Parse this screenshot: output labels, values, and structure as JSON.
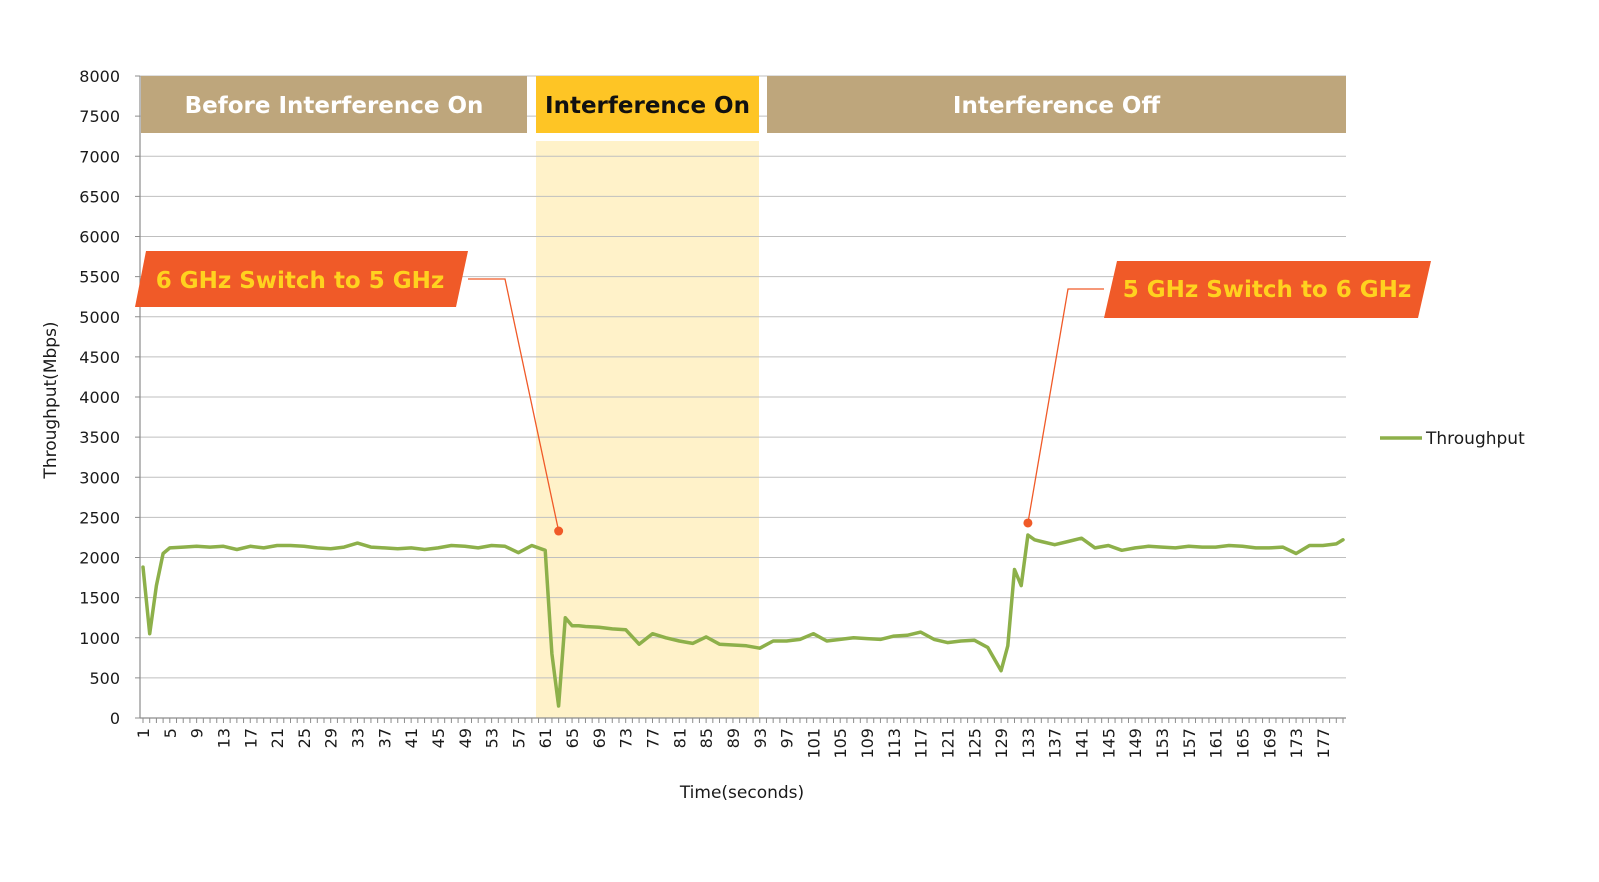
{
  "chart_data": {
    "type": "line",
    "title": "",
    "xlabel": "Time(seconds)",
    "ylabel": "Throughput(Mbps)",
    "ylim": [
      0,
      8000
    ],
    "yticks": [
      0,
      500,
      1000,
      1500,
      2000,
      2500,
      3000,
      3500,
      4000,
      4500,
      5000,
      5500,
      6000,
      6500,
      7000,
      7500,
      8000
    ],
    "xlim": [
      1,
      180
    ],
    "xtick_step": 4,
    "grid": true,
    "legend_position": "right",
    "colors": {
      "line": "#8db04a",
      "callout": "#f05a28",
      "callout_text": "#ffd21f",
      "band_neutral": "#bea67c",
      "band_highlight": "#fec525",
      "shade": "#fff2c9",
      "grid": "#bfbfbf"
    },
    "series": [
      {
        "name": "Throughput",
        "x": [
          1,
          2,
          3,
          4,
          5,
          7,
          9,
          11,
          13,
          15,
          17,
          19,
          21,
          23,
          25,
          27,
          29,
          31,
          33,
          35,
          37,
          39,
          41,
          43,
          45,
          47,
          49,
          51,
          53,
          55,
          57,
          59,
          61,
          62,
          63,
          64,
          65,
          66,
          67,
          69,
          71,
          73,
          75,
          77,
          79,
          81,
          83,
          85,
          87,
          89,
          91,
          93,
          95,
          97,
          99,
          101,
          103,
          105,
          107,
          109,
          111,
          113,
          115,
          117,
          119,
          121,
          123,
          125,
          127,
          129,
          130,
          131,
          132,
          133,
          134,
          135,
          137,
          139,
          141,
          143,
          145,
          147,
          149,
          151,
          153,
          155,
          157,
          159,
          161,
          163,
          165,
          167,
          169,
          171,
          173,
          175,
          177,
          179,
          180
        ],
        "y": [
          1880,
          1050,
          1650,
          2050,
          2120,
          2130,
          2140,
          2130,
          2140,
          2100,
          2140,
          2120,
          2150,
          2150,
          2140,
          2120,
          2110,
          2130,
          2180,
          2130,
          2120,
          2110,
          2120,
          2100,
          2120,
          2150,
          2140,
          2120,
          2150,
          2140,
          2060,
          2150,
          2090,
          800,
          150,
          1250,
          1150,
          1150,
          1140,
          1130,
          1110,
          1100,
          920,
          1050,
          1000,
          960,
          930,
          1010,
          920,
          910,
          900,
          870,
          960,
          960,
          980,
          1050,
          960,
          980,
          1000,
          990,
          980,
          1020,
          1030,
          1070,
          980,
          940,
          960,
          970,
          880,
          590,
          900,
          1850,
          1650,
          2280,
          2220,
          2200,
          2160,
          2200,
          2240,
          2120,
          2150,
          2090,
          2120,
          2140,
          2130,
          2120,
          2140,
          2130,
          2130,
          2150,
          2140,
          2120,
          2120,
          2130,
          2050,
          2150,
          2150,
          2170,
          2220
        ]
      }
    ],
    "regions": [
      {
        "label": "Before Interference On",
        "from": 1,
        "to": 59
      },
      {
        "label": "Interference On",
        "from": 60,
        "to": 93
      },
      {
        "label": "Interference Off",
        "from": 94,
        "to": 180
      }
    ],
    "annotations": [
      {
        "text": "6 GHz Switch to 5 GHz",
        "point": [
          63,
          2330
        ]
      },
      {
        "text": "5 GHz Switch to 6 GHz",
        "point": [
          133,
          2430
        ]
      }
    ]
  }
}
